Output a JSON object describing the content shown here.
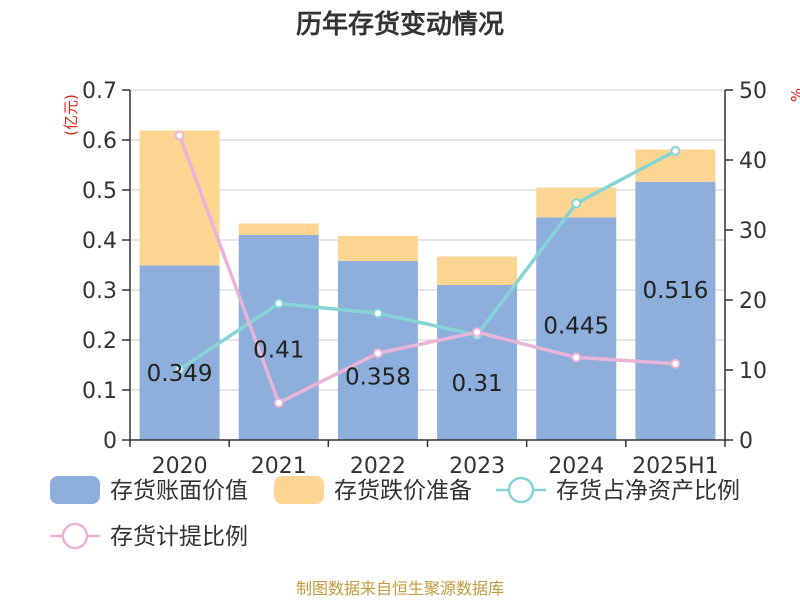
{
  "chart_data": {
    "type": "bar",
    "title": "历年存货变动情况",
    "left_axis_unit": "(亿元)",
    "right_axis_unit": "%",
    "categories": [
      "2020",
      "2021",
      "2022",
      "2023",
      "2024",
      "2025H1"
    ],
    "ylim_left": [
      0,
      0.7
    ],
    "yticks_left": [
      "0",
      "0.1",
      "0.2",
      "0.3",
      "0.4",
      "0.5",
      "0.6",
      "0.7"
    ],
    "ylim_right": [
      0,
      50
    ],
    "yticks_right": [
      "0",
      "10",
      "20",
      "30",
      "40",
      "50"
    ],
    "bar_series": [
      {
        "name": "存货账面价值",
        "color": "#8eaedb",
        "values": [
          0.349,
          0.41,
          0.358,
          0.31,
          0.445,
          0.516
        ]
      },
      {
        "name": "存货跌价准备",
        "color": "#fdd593",
        "values": [
          0.27,
          0.023,
          0.05,
          0.057,
          0.06,
          0.065
        ]
      }
    ],
    "bar_labels": [
      "0.349",
      "0.41",
      "0.358",
      "0.31",
      "0.445",
      "0.516"
    ],
    "line_series": [
      {
        "name": "存货占净资产比例",
        "color": "#86d4d6",
        "values": [
          10.1,
          19.5,
          18.1,
          15.0,
          33.8,
          41.3
        ]
      },
      {
        "name": "存货计提比例",
        "color": "#e9b4d7",
        "values": [
          43.5,
          5.3,
          12.4,
          15.4,
          11.8,
          10.9
        ]
      }
    ],
    "grid": true,
    "legend_position": "bottom"
  },
  "source_text": "制图数据来自恒生聚源数据库"
}
